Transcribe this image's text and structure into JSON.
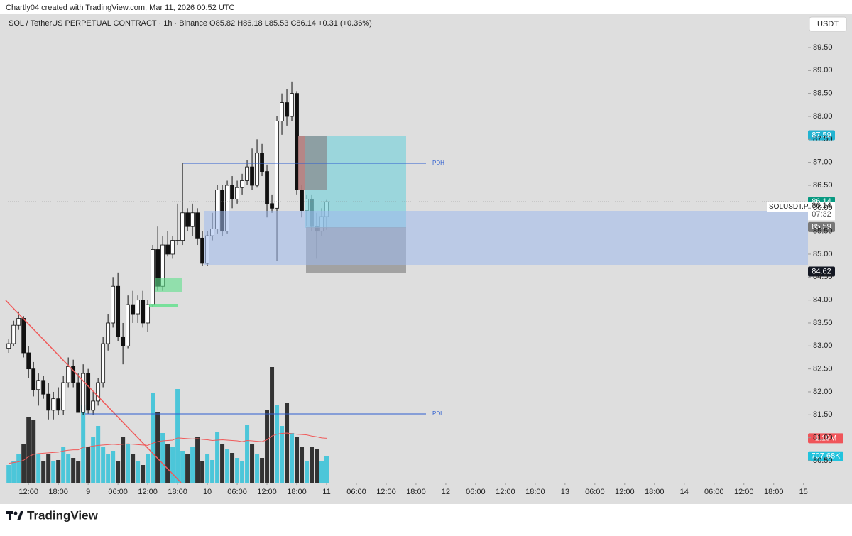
{
  "chart_data": {
    "type": "candlestick",
    "credit": "Chartly04 created with TradingView.com, Mar 11, 2026 00:52 UTC",
    "title": "SOL / TetherUS PERPETUAL CONTRACT · 1h · Binance",
    "ohlc_labels": [
      "O85.82",
      "H86.18",
      "L85.53",
      "C86.14"
    ],
    "change_label": "+0.31 (+0.36%)",
    "currency": "USDT",
    "up_color": "#ffffff",
    "down_color": "#111111",
    "volume_up_color": "#4cc6d9",
    "volume_down_color": "#333333",
    "volume_ma_color": "#f05a5a",
    "open": [
      82.95,
      83.05,
      83.45,
      83.6,
      82.85,
      82.5,
      82.05,
      82.25,
      81.95,
      81.6,
      81.85,
      81.6,
      82.2,
      82.55,
      82.2,
      81.55,
      82.4,
      81.6,
      81.8,
      82.2,
      83.05,
      83.5,
      84.3,
      83.2,
      83.0,
      83.9,
      83.7,
      84.0,
      83.5,
      83.9,
      85.1,
      84.3,
      85.2,
      85.0,
      85.3,
      85.3,
      85.9,
      85.6,
      85.9,
      85.35,
      84.8,
      85.4,
      85.55,
      86.4,
      85.5,
      86.5,
      86.2,
      86.45,
      86.6,
      86.9,
      86.5,
      87.2,
      86.8,
      86.1,
      86.0,
      87.9,
      88.3,
      88.0,
      88.5,
      86.4,
      85.95,
      86.2,
      85.6,
      85.5,
      85.82
    ],
    "high": [
      83.15,
      83.55,
      83.75,
      83.65,
      83.0,
      82.65,
      82.4,
      82.35,
      82.2,
      82.0,
      82.1,
      82.35,
      82.75,
      82.7,
      82.4,
      82.6,
      82.5,
      82.0,
      82.3,
      83.2,
      83.7,
      84.5,
      84.6,
      83.5,
      84.1,
      84.2,
      84.1,
      84.2,
      84.0,
      85.2,
      85.6,
      85.4,
      85.5,
      85.4,
      86.1,
      86.98,
      86.0,
      86.1,
      86.0,
      85.5,
      85.5,
      85.9,
      86.5,
      86.5,
      86.6,
      86.7,
      86.6,
      86.75,
      87.05,
      87.3,
      87.5,
      87.4,
      86.95,
      86.3,
      88.0,
      88.5,
      88.6,
      88.76,
      88.55,
      86.5,
      86.3,
      86.3,
      85.9,
      86.0,
      86.18
    ],
    "low": [
      82.85,
      83.0,
      83.35,
      82.75,
      82.3,
      81.9,
      81.7,
      81.85,
      81.4,
      81.4,
      81.5,
      81.5,
      82.1,
      82.1,
      81.55,
      81.5,
      81.52,
      81.5,
      81.7,
      82.1,
      82.9,
      83.4,
      83.1,
      82.6,
      82.95,
      83.5,
      83.5,
      83.4,
      83.3,
      83.85,
      84.2,
      84.2,
      84.95,
      84.9,
      85.2,
      85.2,
      85.5,
      85.4,
      85.2,
      84.75,
      84.75,
      85.3,
      85.45,
      85.4,
      85.45,
      86.0,
      86.1,
      86.3,
      86.5,
      86.4,
      86.45,
      86.7,
      85.8,
      85.9,
      84.85,
      87.6,
      87.8,
      87.9,
      86.3,
      85.8,
      85.6,
      85.5,
      84.9,
      85.4,
      85.53
    ],
    "close": [
      83.05,
      83.45,
      83.6,
      82.85,
      82.5,
      82.05,
      82.25,
      81.95,
      81.6,
      81.85,
      81.6,
      82.2,
      82.55,
      82.2,
      81.55,
      82.4,
      81.6,
      81.8,
      82.2,
      83.05,
      83.5,
      84.3,
      83.2,
      83.0,
      83.9,
      83.7,
      84.0,
      83.5,
      83.9,
      85.1,
      84.3,
      85.2,
      85.0,
      85.3,
      85.3,
      85.9,
      85.6,
      85.9,
      85.35,
      84.8,
      85.4,
      85.55,
      86.4,
      85.5,
      86.5,
      86.2,
      86.45,
      86.6,
      86.9,
      86.5,
      87.2,
      86.8,
      86.1,
      86.0,
      87.9,
      88.3,
      88.0,
      88.5,
      86.4,
      85.95,
      86.2,
      85.6,
      85.5,
      85.82,
      86.14
    ],
    "volume": [
      475000,
      570000,
      760000,
      1045000,
      1748000,
      1672000,
      760000,
      570000,
      760000,
      570000,
      608000,
      950000,
      760000,
      665000,
      570000,
      2090000,
      950000,
      1235000,
      1520000,
      950000,
      760000,
      855000,
      570000,
      1235000,
      1045000,
      760000,
      570000,
      475000,
      760000,
      2413000,
      1900000,
      1330000,
      1045000,
      950000,
      2508000,
      855000,
      760000,
      950000,
      1235000,
      570000,
      760000,
      608000,
      1368000,
      1045000,
      912000,
      798000,
      665000,
      570000,
      1558000,
      1045000,
      760000,
      665000,
      1938000,
      3097000,
      2090000,
      1520000,
      2128000,
      1330000,
      1235000,
      950000,
      570000,
      950000,
      912000,
      570000,
      707680
    ],
    "volume_ma": [
      520000,
      540000,
      560000,
      600000,
      700000,
      760000,
      780000,
      790000,
      800000,
      810000,
      820000,
      850000,
      870000,
      880000,
      880000,
      950000,
      960000,
      980000,
      1000000,
      1010000,
      1020000,
      1030000,
      1020000,
      1030000,
      1040000,
      1030000,
      1020000,
      1010000,
      1000000,
      1060000,
      1100000,
      1120000,
      1130000,
      1140000,
      1200000,
      1190000,
      1180000,
      1170000,
      1180000,
      1160000,
      1150000,
      1130000,
      1140000,
      1150000,
      1140000,
      1130000,
      1120000,
      1100000,
      1130000,
      1120000,
      1110000,
      1100000,
      1150000,
      1250000,
      1300000,
      1320000,
      1330000,
      1310000,
      1300000,
      1290000,
      1280000,
      1250000,
      1230000,
      1200000,
      1190000
    ],
    "xlim": [
      -0.6,
      160.9
    ],
    "xticks": [
      {
        "value": 4,
        "label": "12:00"
      },
      {
        "value": 10,
        "label": "18:00"
      },
      {
        "value": 16,
        "label": "9"
      },
      {
        "value": 22,
        "label": "06:00"
      },
      {
        "value": 28,
        "label": "12:00"
      },
      {
        "value": 34,
        "label": "18:00"
      },
      {
        "value": 40,
        "label": "10"
      },
      {
        "value": 46,
        "label": "06:00"
      },
      {
        "value": 52,
        "label": "12:00"
      },
      {
        "value": 58,
        "label": "18:00"
      },
      {
        "value": 64,
        "label": "11"
      },
      {
        "value": 70,
        "label": "06:00"
      },
      {
        "value": 76,
        "label": "12:00"
      },
      {
        "value": 82,
        "label": "18:00"
      },
      {
        "value": 88,
        "label": "12"
      },
      {
        "value": 94,
        "label": "06:00"
      },
      {
        "value": 100,
        "label": "12:00"
      },
      {
        "value": 106,
        "label": "18:00"
      },
      {
        "value": 112,
        "label": "13"
      },
      {
        "value": 118,
        "label": "06:00"
      },
      {
        "value": 124,
        "label": "12:00"
      },
      {
        "value": 130,
        "label": "18:00"
      },
      {
        "value": 136,
        "label": "14"
      },
      {
        "value": 142,
        "label": "06:00"
      },
      {
        "value": 148,
        "label": "12:00"
      },
      {
        "value": 154,
        "label": "18:00"
      },
      {
        "value": 160,
        "label": "15"
      }
    ],
    "ylim": [
      80.02,
      89.84
    ],
    "yticks": [
      {
        "value": 80.5,
        "label": "80.50"
      },
      {
        "value": 81,
        "label": "81.00"
      },
      {
        "value": 81.5,
        "label": "81.50"
      },
      {
        "value": 82,
        "label": "82.00"
      },
      {
        "value": 82.5,
        "label": "82.50"
      },
      {
        "value": 83,
        "label": "83.00"
      },
      {
        "value": 83.5,
        "label": "83.50"
      },
      {
        "value": 84,
        "label": "84.00"
      },
      {
        "value": 84.5,
        "label": "84.50"
      },
      {
        "value": 85,
        "label": "85.00"
      },
      {
        "value": 85.5,
        "label": "85.50"
      },
      {
        "value": 86,
        "label": "86.00"
      },
      {
        "value": 86.5,
        "label": "86.50"
      },
      {
        "value": 87,
        "label": "87.00"
      },
      {
        "value": 87.5,
        "label": "87.50"
      },
      {
        "value": 88,
        "label": "88.00"
      },
      {
        "value": 88.5,
        "label": "88.50"
      },
      {
        "value": 89,
        "label": "89.00"
      },
      {
        "value": 89.5,
        "label": "89.50"
      }
    ],
    "vlim": [
      0,
      12065000
    ],
    "levels": [
      {
        "label": "PDH",
        "value": 86.98
      },
      {
        "label": "PDL",
        "value": 81.52
      }
    ],
    "price_labels": [
      {
        "value": 87.59,
        "label": "87.59",
        "color": "#22b3d1"
      },
      {
        "value": 86.14,
        "label": "86.14",
        "color": "#089981"
      },
      {
        "value": 85.59,
        "label": "85.59",
        "color": "#787878"
      },
      {
        "value": 84.62,
        "label": "84.62",
        "color": "#131722"
      }
    ],
    "volume_labels": [
      {
        "value": 1190000,
        "label": "1.19M",
        "color": "#f0555a"
      },
      {
        "value": 707680,
        "label": "707.68K",
        "color": "#22c3dd"
      }
    ],
    "symbol_label": "SOLUSDT.P",
    "last_price_label": "86.14",
    "countdown": "07:32"
  },
  "footer": {
    "brand": "TradingView"
  }
}
